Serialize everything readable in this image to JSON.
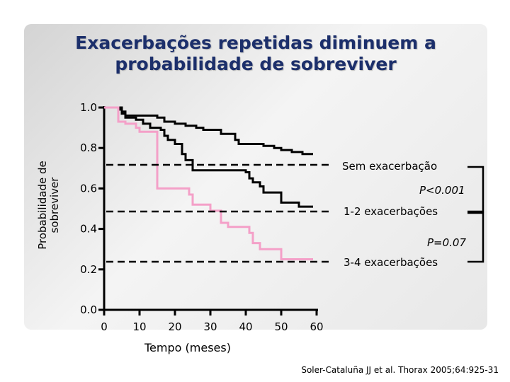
{
  "title": {
    "line1": "Exacerbações repetidas diminuem a",
    "line2": "probabilidade de sobreviver"
  },
  "chart_data": {
    "type": "line",
    "chart_subtype": "kaplan-meier step",
    "xlabel": "Tempo (meses)",
    "ylabel": [
      "Probabilidade de",
      "sobreviver"
    ],
    "xlim": [
      0,
      60
    ],
    "ylim": [
      0,
      1
    ],
    "x_ticks": [
      0,
      10,
      20,
      30,
      40,
      50,
      60
    ],
    "y_ticks": [
      0.0,
      0.2,
      0.4,
      0.6,
      0.8,
      1.0
    ],
    "y_tick_labels": [
      "0.0",
      "0.2",
      "0.4",
      "0.6",
      "0.8",
      "1.0"
    ],
    "grid": false,
    "series": [
      {
        "name": "Sem exacerbação",
        "color": "#000000",
        "points": [
          [
            0,
            1.0
          ],
          [
            4,
            1.0
          ],
          [
            4,
            0.99
          ],
          [
            5,
            0.99
          ],
          [
            5,
            0.97
          ],
          [
            6,
            0.97
          ],
          [
            6,
            0.96
          ],
          [
            15,
            0.96
          ],
          [
            15,
            0.95
          ],
          [
            17,
            0.95
          ],
          [
            17,
            0.93
          ],
          [
            20,
            0.93
          ],
          [
            20,
            0.92
          ],
          [
            23,
            0.92
          ],
          [
            23,
            0.91
          ],
          [
            26,
            0.91
          ],
          [
            26,
            0.9
          ],
          [
            28,
            0.9
          ],
          [
            28,
            0.89
          ],
          [
            33,
            0.89
          ],
          [
            33,
            0.87
          ],
          [
            37,
            0.87
          ],
          [
            37,
            0.84
          ],
          [
            38,
            0.84
          ],
          [
            38,
            0.82
          ],
          [
            45,
            0.82
          ],
          [
            45,
            0.81
          ],
          [
            48,
            0.81
          ],
          [
            48,
            0.8
          ],
          [
            50,
            0.8
          ],
          [
            50,
            0.79
          ],
          [
            53,
            0.79
          ],
          [
            53,
            0.78
          ],
          [
            56,
            0.78
          ],
          [
            56,
            0.77
          ],
          [
            59,
            0.77
          ]
        ]
      },
      {
        "name": "1-2 exacerbações",
        "color": "#000000",
        "points": [
          [
            0,
            1.0
          ],
          [
            5,
            1.0
          ],
          [
            5,
            0.98
          ],
          [
            6,
            0.98
          ],
          [
            6,
            0.95
          ],
          [
            9,
            0.95
          ],
          [
            9,
            0.94
          ],
          [
            11,
            0.94
          ],
          [
            11,
            0.92
          ],
          [
            13,
            0.92
          ],
          [
            13,
            0.9
          ],
          [
            16,
            0.9
          ],
          [
            16,
            0.89
          ],
          [
            17,
            0.89
          ],
          [
            17,
            0.86
          ],
          [
            18,
            0.86
          ],
          [
            18,
            0.84
          ],
          [
            20,
            0.84
          ],
          [
            20,
            0.82
          ],
          [
            22,
            0.82
          ],
          [
            22,
            0.77
          ],
          [
            23,
            0.77
          ],
          [
            23,
            0.74
          ],
          [
            25,
            0.74
          ],
          [
            25,
            0.69
          ],
          [
            40,
            0.69
          ],
          [
            40,
            0.68
          ],
          [
            41,
            0.68
          ],
          [
            41,
            0.65
          ],
          [
            42,
            0.65
          ],
          [
            42,
            0.63
          ],
          [
            44,
            0.63
          ],
          [
            44,
            0.61
          ],
          [
            45,
            0.61
          ],
          [
            45,
            0.58
          ],
          [
            50,
            0.58
          ],
          [
            50,
            0.53
          ],
          [
            55,
            0.53
          ],
          [
            55,
            0.51
          ],
          [
            59,
            0.51
          ]
        ]
      },
      {
        "name": "3-4 exacerbações",
        "color": "#f4a0c8",
        "points": [
          [
            0,
            1.0
          ],
          [
            4,
            1.0
          ],
          [
            4,
            0.93
          ],
          [
            6,
            0.93
          ],
          [
            6,
            0.92
          ],
          [
            9,
            0.92
          ],
          [
            9,
            0.9
          ],
          [
            10,
            0.9
          ],
          [
            10,
            0.88
          ],
          [
            15,
            0.88
          ],
          [
            15,
            0.6
          ],
          [
            24,
            0.6
          ],
          [
            24,
            0.57
          ],
          [
            25,
            0.57
          ],
          [
            25,
            0.52
          ],
          [
            30,
            0.52
          ],
          [
            30,
            0.49
          ],
          [
            33,
            0.49
          ],
          [
            33,
            0.43
          ],
          [
            35,
            0.43
          ],
          [
            35,
            0.41
          ],
          [
            41,
            0.41
          ],
          [
            41,
            0.38
          ],
          [
            42,
            0.38
          ],
          [
            42,
            0.33
          ],
          [
            44,
            0.33
          ],
          [
            44,
            0.3
          ],
          [
            50,
            0.3
          ],
          [
            50,
            0.25
          ],
          [
            59,
            0.25
          ]
        ]
      }
    ],
    "annotations": {
      "group1_label": "Sem exacerbação",
      "pvalue1": "P<0.001",
      "group2_label": "1-2 exacerbações",
      "pvalue2": "P=0.07",
      "group3_label": "3-4 exacerbações"
    }
  },
  "source": "Soler-Cataluña JJ et al. Thorax 2005;64:925-31"
}
